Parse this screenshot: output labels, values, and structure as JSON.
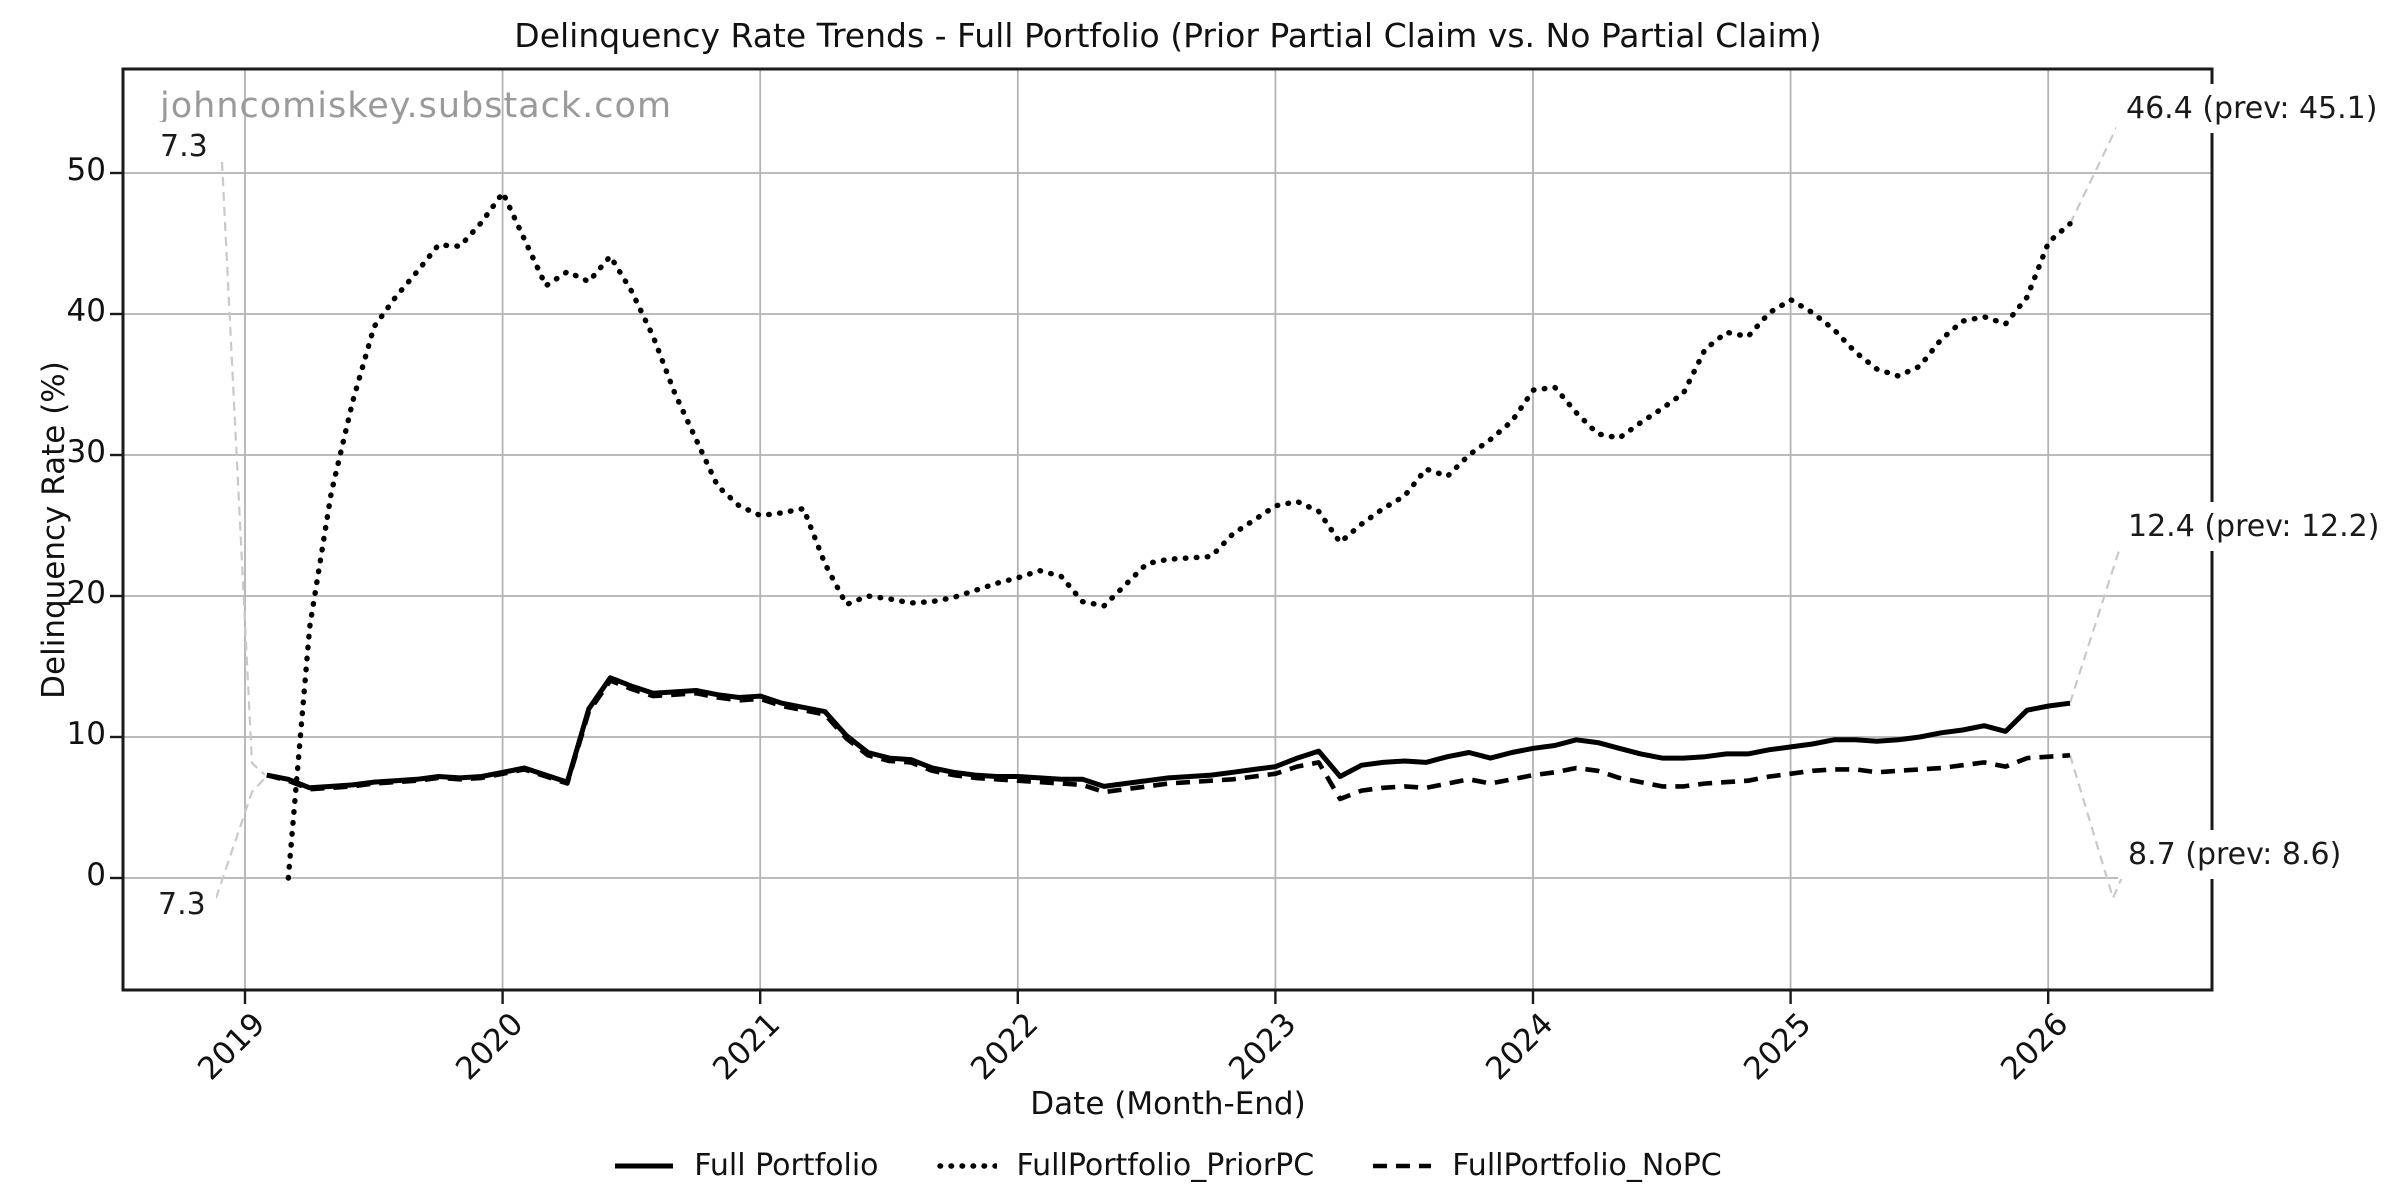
{
  "title": "Delinquency Rate Trends - Full Portfolio (Prior Partial Claim vs. No Partial Claim)",
  "watermark": "johncomiskey.substack.com",
  "axes": {
    "x_label": "Date (Month-End)",
    "y_label": "Delinquency Rate (%)",
    "x_tick_labels": [
      "2019",
      "2020",
      "2021",
      "2022",
      "2023",
      "2024",
      "2025",
      "2026"
    ],
    "y_tick_labels": [
      "0",
      "10",
      "20",
      "30",
      "40",
      "50"
    ]
  },
  "annotations": {
    "start_full": "7.3",
    "start_nopc": "7.3",
    "end_priorpc": "46.4 (prev: 45.1)",
    "end_full": "12.4 (prev: 12.2)",
    "end_nopc": "8.7 (prev: 8.6)"
  },
  "legend": {
    "items": [
      {
        "label": "Full Portfolio",
        "style": "solid"
      },
      {
        "label": "FullPortfolio_PriorPC",
        "style": "dotted"
      },
      {
        "label": "FullPortfolio_NoPC",
        "style": "dashed"
      }
    ]
  },
  "chart_data": {
    "type": "line",
    "title": "Delinquency Rate Trends - Full Portfolio (Prior Partial Claim vs. No Partial Claim)",
    "xlabel": "Date (Month-End)",
    "ylabel": "Delinquency Rate (%)",
    "x_start_month": "2019-01",
    "x_freq": "monthly",
    "x_tick_years": [
      2019,
      2020,
      2021,
      2022,
      2023,
      2024,
      2025,
      2026
    ],
    "y_ticks": [
      0,
      10,
      20,
      30,
      40,
      50
    ],
    "ylim": [
      -7.9,
      57.4
    ],
    "grid": true,
    "legend_position": "bottom",
    "series": [
      {
        "name": "Full Portfolio",
        "style": "solid",
        "first_value": 7.3,
        "last_value": 12.4,
        "prev_value": 12.2,
        "values": [
          7.3,
          7.0,
          6.4,
          6.5,
          6.6,
          6.8,
          6.9,
          7.0,
          7.2,
          7.1,
          7.2,
          7.5,
          7.8,
          7.3,
          6.8,
          12.0,
          14.2,
          13.6,
          13.1,
          13.2,
          13.3,
          13.0,
          12.8,
          12.9,
          12.4,
          12.1,
          11.8,
          10.1,
          8.9,
          8.5,
          8.4,
          7.8,
          7.5,
          7.3,
          7.2,
          7.2,
          7.1,
          7.0,
          7.0,
          6.5,
          6.7,
          6.9,
          7.1,
          7.2,
          7.3,
          7.5,
          7.7,
          7.9,
          8.5,
          9.0,
          7.2,
          8.0,
          8.2,
          8.3,
          8.2,
          8.6,
          8.9,
          8.5,
          8.9,
          9.2,
          9.4,
          9.8,
          9.6,
          9.2,
          8.8,
          8.5,
          8.5,
          8.6,
          8.8,
          8.8,
          9.1,
          9.3,
          9.5,
          9.8,
          9.8,
          9.7,
          9.8,
          10.0,
          10.3,
          10.5,
          10.8,
          10.4,
          11.9,
          12.2,
          12.4
        ]
      },
      {
        "name": "FullPortfolio_PriorPC",
        "style": "dotted",
        "first_value": 0.0,
        "last_value": 46.4,
        "prev_value": 45.1,
        "values": [
          null,
          0.0,
          17.8,
          27.3,
          33.8,
          39.1,
          41.2,
          43.0,
          44.9,
          44.8,
          46.5,
          48.6,
          45.3,
          42.0,
          43.0,
          42.3,
          44.1,
          41.6,
          38.4,
          34.4,
          31.1,
          27.8,
          26.4,
          25.7,
          25.9,
          26.2,
          22.3,
          19.4,
          20.0,
          19.8,
          19.5,
          19.6,
          19.9,
          20.4,
          20.9,
          21.3,
          21.8,
          21.4,
          19.6,
          19.3,
          20.8,
          22.3,
          22.6,
          22.7,
          22.8,
          24.4,
          25.4,
          26.4,
          26.7,
          26.0,
          23.8,
          25.1,
          26.2,
          27.1,
          29.0,
          28.5,
          30.0,
          31.1,
          32.4,
          34.6,
          34.8,
          33.0,
          31.5,
          31.2,
          32.3,
          33.3,
          34.4,
          37.5,
          38.7,
          38.4,
          40.1,
          41.0,
          40.1,
          38.9,
          37.3,
          36.1,
          35.6,
          36.3,
          38.2,
          39.5,
          39.8,
          39.3,
          41.2,
          45.1,
          46.4
        ]
      },
      {
        "name": "FullPortfolio_NoPC",
        "style": "dashed",
        "first_value": 7.3,
        "last_value": 8.7,
        "prev_value": 8.6,
        "values": [
          7.3,
          6.9,
          6.3,
          6.4,
          6.5,
          6.7,
          6.8,
          6.9,
          7.1,
          7.0,
          7.1,
          7.4,
          7.7,
          7.2,
          6.7,
          11.8,
          14.0,
          13.4,
          12.9,
          13.0,
          13.1,
          12.8,
          12.6,
          12.7,
          12.2,
          11.9,
          11.6,
          9.9,
          8.7,
          8.3,
          8.2,
          7.6,
          7.3,
          7.1,
          7.0,
          6.9,
          6.8,
          6.7,
          6.6,
          6.1,
          6.3,
          6.5,
          6.7,
          6.8,
          6.9,
          7.0,
          7.2,
          7.4,
          7.9,
          8.2,
          5.6,
          6.2,
          6.4,
          6.5,
          6.4,
          6.7,
          7.0,
          6.7,
          7.0,
          7.3,
          7.5,
          7.8,
          7.6,
          7.1,
          6.8,
          6.5,
          6.5,
          6.7,
          6.8,
          6.9,
          7.2,
          7.4,
          7.6,
          7.7,
          7.7,
          7.5,
          7.6,
          7.7,
          7.8,
          8.0,
          8.2,
          7.9,
          8.5,
          8.6,
          8.7
        ]
      }
    ],
    "colors": {
      "line": "#000000",
      "grid": "#b3b3b3",
      "watermark": "#9a9a9a",
      "leader": "#c9c9c9",
      "background": "#ffffff"
    }
  }
}
